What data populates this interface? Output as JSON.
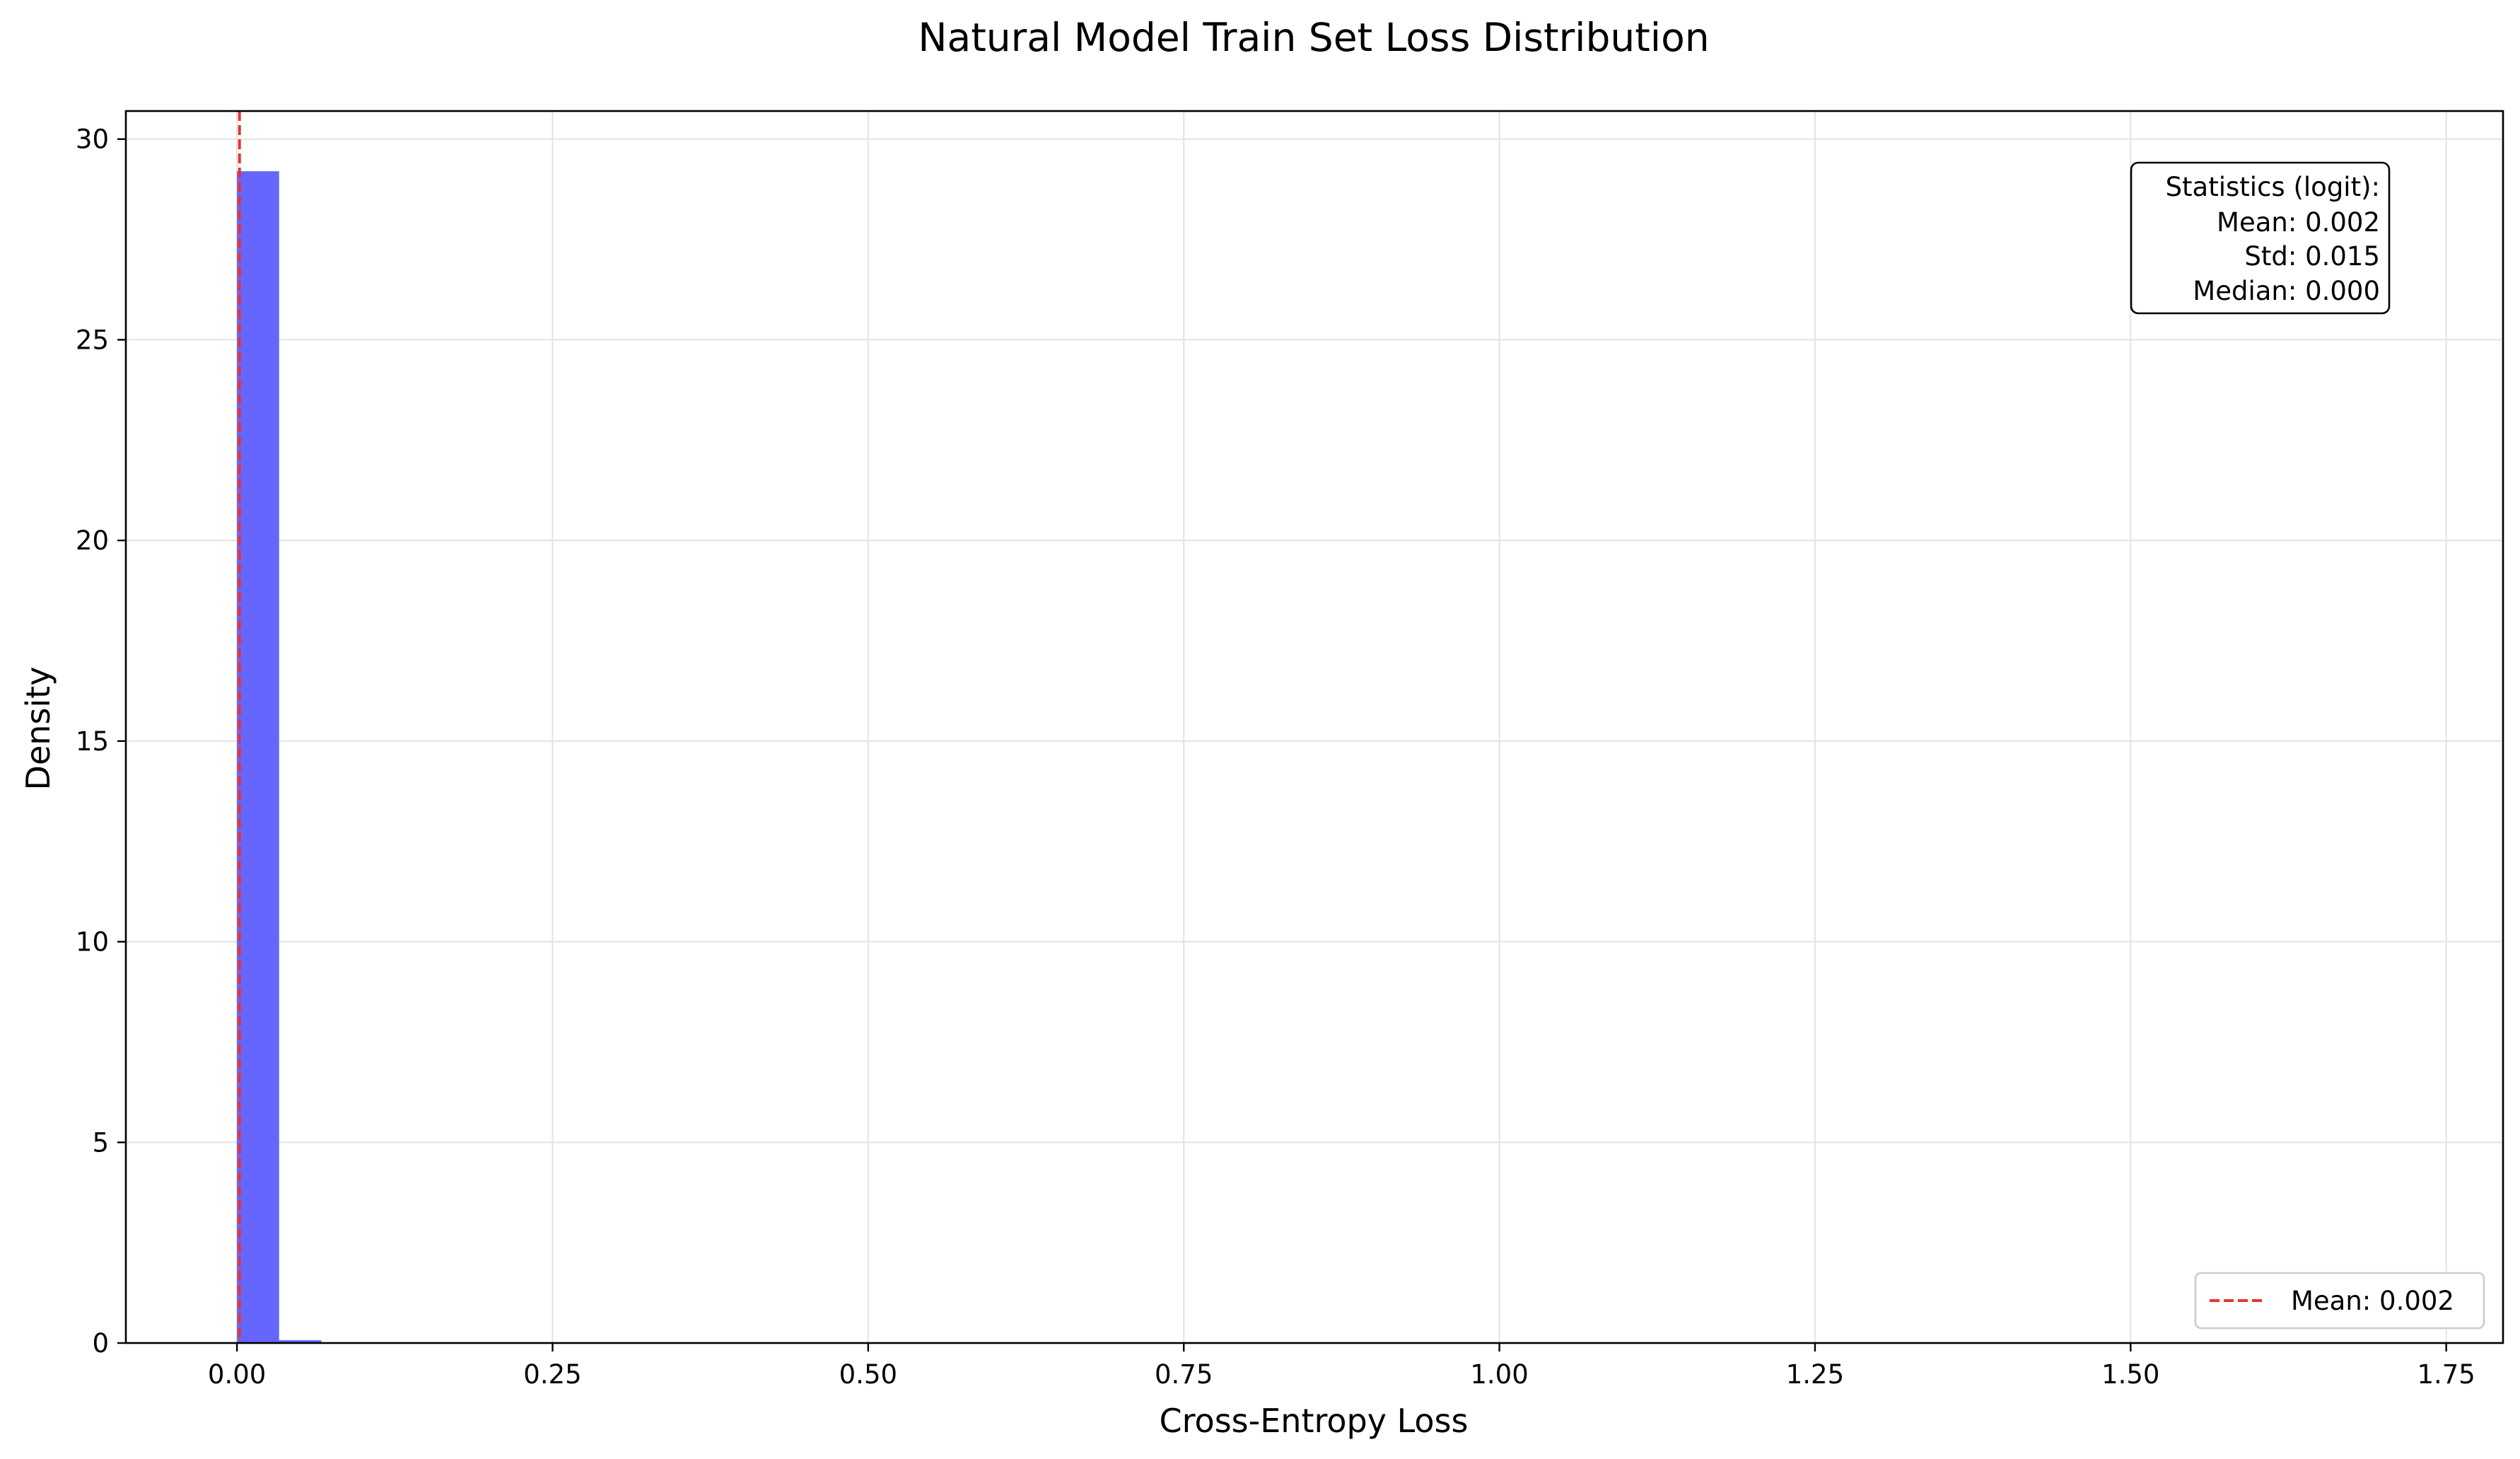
{
  "chart_data": {
    "type": "bar",
    "title": "Natural Model Train Set Loss Distribution",
    "xlabel": "Cross-Entropy Loss",
    "ylabel": "Density",
    "xlim": [
      -0.088,
      1.795
    ],
    "ylim": [
      0,
      30.7
    ],
    "xticks": [
      0.0,
      0.25,
      0.5,
      0.75,
      1.0,
      1.25,
      1.5,
      1.75
    ],
    "xtick_labels": [
      "0.00",
      "0.25",
      "0.50",
      "0.75",
      "1.00",
      "1.25",
      "1.50",
      "1.75"
    ],
    "yticks": [
      0,
      5,
      10,
      15,
      20,
      25,
      30
    ],
    "ytick_labels": [
      "0",
      "5",
      "10",
      "15",
      "20",
      "25",
      "30"
    ],
    "grid": true,
    "bin_width": 0.0334,
    "bins": [
      {
        "x0": 0.0,
        "height": 29.2
      },
      {
        "x0": 0.0334,
        "height": 0.07
      }
    ],
    "bar_color": "#6666ff",
    "mean_line": {
      "x": 0.002,
      "color": "#e8332f",
      "style": "dashed"
    },
    "legend": {
      "placement": "lower right",
      "entries": [
        {
          "label": "Mean: 0.002",
          "color": "#e8332f",
          "style": "dashed"
        }
      ]
    },
    "stats_box": {
      "placement": "upper right",
      "lines": [
        "Statistics (logit):",
        "Mean: 0.002",
        "Std: 0.015",
        "Median: 0.000"
      ]
    }
  }
}
